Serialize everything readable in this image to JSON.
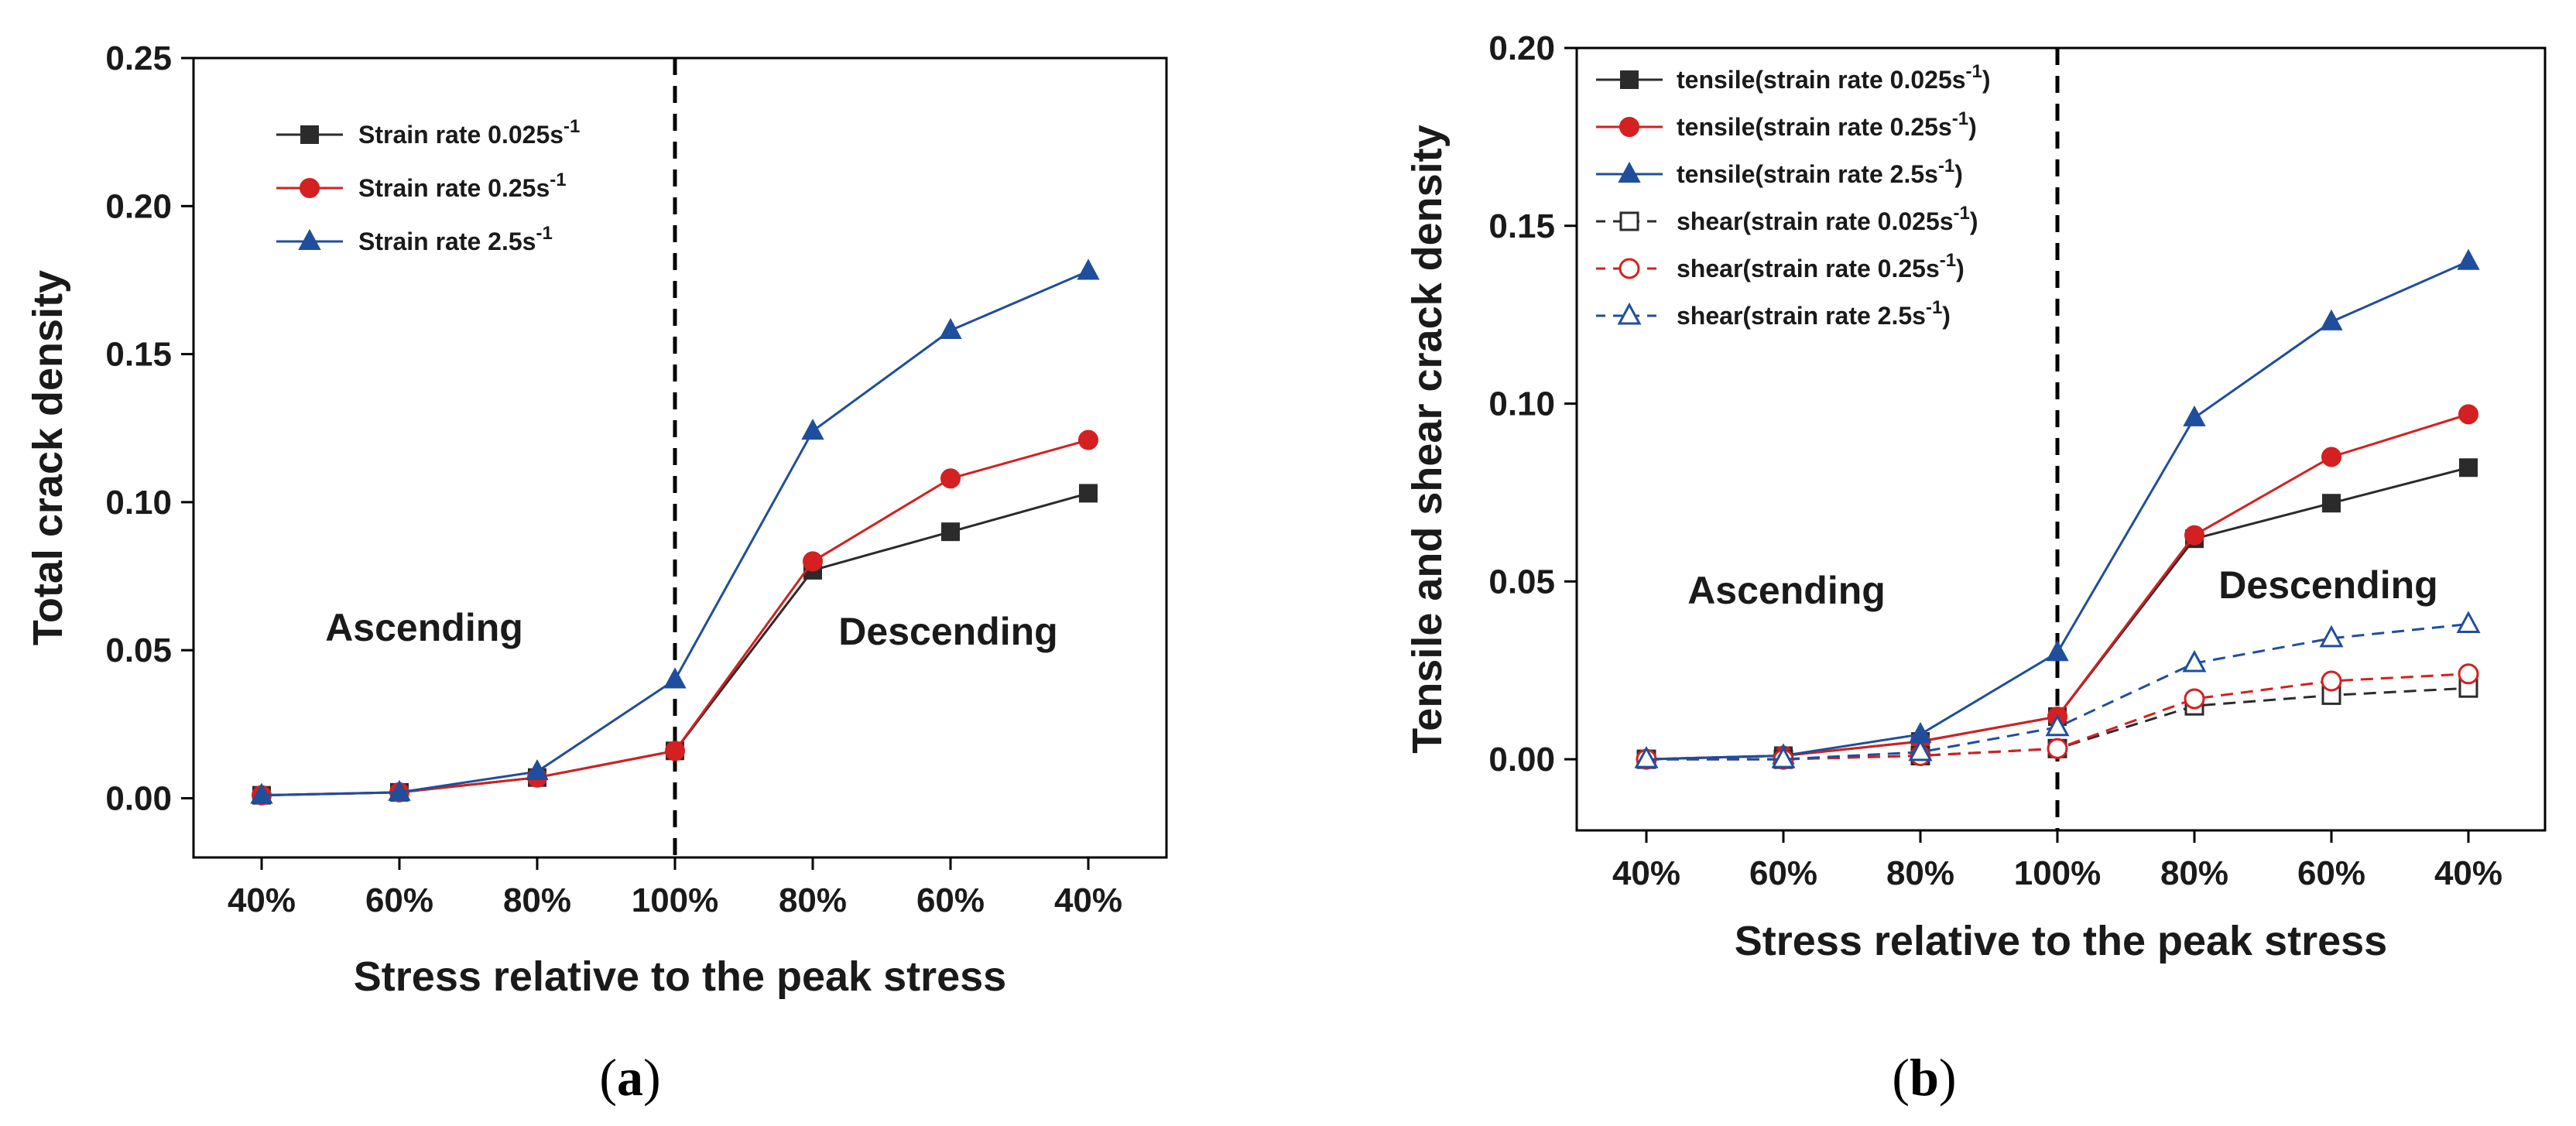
{
  "chart_data": [
    {
      "type": "line",
      "panel": "a",
      "ylabel": "Total crack density",
      "xlabel": "Stress relative to the peak stress",
      "categories": [
        "40%",
        "60%",
        "80%",
        "100%",
        "80%",
        "60%",
        "40%"
      ],
      "ylim": [
        -0.02,
        0.25
      ],
      "yticks": [
        0.0,
        0.05,
        0.1,
        0.15,
        0.2,
        0.25
      ],
      "ytick_labels": [
        "0.00",
        "0.05",
        "0.10",
        "0.15",
        "0.20",
        "0.25"
      ],
      "divider_at": "100%",
      "annotations": [
        "Ascending",
        "Descending"
      ],
      "legend_position": "top-left",
      "series": [
        {
          "name": "Strain rate 0.025s",
          "sup": "-1",
          "color": "#2b2b2b",
          "marker": "square",
          "filled": true,
          "dashed": false,
          "values": [
            0.001,
            0.002,
            0.007,
            0.016,
            0.077,
            0.09,
            0.103
          ]
        },
        {
          "name": "Strain rate 0.25s",
          "sup": "-1",
          "color": "#d42020",
          "marker": "circle",
          "filled": true,
          "dashed": false,
          "values": [
            0.001,
            0.002,
            0.007,
            0.016,
            0.08,
            0.108,
            0.121
          ]
        },
        {
          "name": "Strain rate 2.5s",
          "sup": "-1",
          "color": "#1f4e9c",
          "marker": "triangle",
          "filled": true,
          "dashed": false,
          "values": [
            0.001,
            0.002,
            0.009,
            0.04,
            0.124,
            0.158,
            0.178
          ]
        }
      ]
    },
    {
      "type": "line",
      "panel": "b",
      "ylabel": "Tensile and shear crack density",
      "xlabel": "Stress relative to the peak stress",
      "categories": [
        "40%",
        "60%",
        "80%",
        "100%",
        "80%",
        "60%",
        "40%"
      ],
      "ylim": [
        -0.02,
        0.2
      ],
      "yticks": [
        0.0,
        0.05,
        0.1,
        0.15,
        0.2
      ],
      "ytick_labels": [
        "0.00",
        "0.05",
        "0.10",
        "0.15",
        "0.20"
      ],
      "divider_at": "100%",
      "annotations": [
        "Ascending",
        "Descending"
      ],
      "legend_position": "top-left",
      "series": [
        {
          "name": "tensile(strain rate 0.025s",
          "sup": "-1",
          "suffix": ")",
          "color": "#2b2b2b",
          "marker": "square",
          "filled": true,
          "dashed": false,
          "values": [
            0.0,
            0.001,
            0.005,
            0.012,
            0.062,
            0.072,
            0.082
          ]
        },
        {
          "name": "tensile(strain rate 0.25s",
          "sup": "-1",
          "suffix": ")",
          "color": "#d42020",
          "marker": "circle",
          "filled": true,
          "dashed": false,
          "values": [
            0.0,
            0.001,
            0.005,
            0.012,
            0.063,
            0.085,
            0.097
          ]
        },
        {
          "name": "tensile(strain rate 2.5s",
          "sup": "-1",
          "suffix": ")",
          "color": "#1f4e9c",
          "marker": "triangle",
          "filled": true,
          "dashed": false,
          "values": [
            0.0,
            0.001,
            0.007,
            0.03,
            0.096,
            0.123,
            0.14
          ]
        },
        {
          "name": "shear(strain rate 0.025s",
          "sup": "-1",
          "suffix": ")",
          "color": "#2b2b2b",
          "marker": "square",
          "filled": false,
          "dashed": true,
          "values": [
            0.0,
            0.0,
            0.001,
            0.003,
            0.015,
            0.018,
            0.02
          ]
        },
        {
          "name": "shear(strain rate 0.25s",
          "sup": "-1",
          "suffix": ")",
          "color": "#d42020",
          "marker": "circle",
          "filled": false,
          "dashed": true,
          "values": [
            0.0,
            0.0,
            0.001,
            0.003,
            0.017,
            0.022,
            0.024
          ]
        },
        {
          "name": "shear(strain rate 2.5s",
          "sup": "-1",
          "suffix": ")",
          "color": "#1f4e9c",
          "marker": "triangle",
          "filled": false,
          "dashed": true,
          "values": [
            0.0,
            0.0,
            0.002,
            0.009,
            0.027,
            0.034,
            0.038
          ]
        }
      ]
    }
  ],
  "panel_labels": [
    "a",
    "b"
  ]
}
